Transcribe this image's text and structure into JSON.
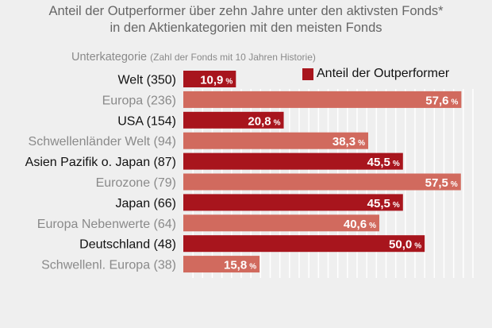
{
  "chart_data": {
    "type": "bar",
    "orientation": "horizontal",
    "title": "Anteil der Outperformer über zehn Jahre unter den aktivsten Fonds*",
    "subtitle": "in den Aktienkategorien mit den meisten Fonds",
    "category_header": "Unterkategorie",
    "category_header_note": "(Zahl der Fonds mit 10 Jahren Historie)",
    "legend": "Anteil der Outperformer",
    "categories": [
      "Welt (350)",
      "Europa (236)",
      "USA (154)",
      "Schwellenländer Welt (94)",
      "Asien Pazifik o. Japan (87)",
      "Eurozone (79)",
      "Japan (66)",
      "Europa Nebenwerte (64)",
      "Deutschland (48)",
      "Schwellenl. Europa (38)"
    ],
    "values": [
      10.9,
      57.6,
      20.8,
      38.3,
      45.5,
      57.5,
      45.5,
      40.6,
      50.0,
      15.8
    ],
    "value_labels": [
      "10,9",
      "57,6",
      "20,8",
      "38,3",
      "45,5",
      "57,5",
      "45,5",
      "40,6",
      "50,0",
      "15,8"
    ],
    "unit": "%",
    "xlim": [
      0,
      60
    ],
    "grid": true,
    "colors": {
      "dark_bar": "#a8151d",
      "light_bar": "#d16a5e",
      "dark_label": "#111111",
      "light_label": "#8a8a8a",
      "grid": "#ffffff",
      "background": "#efefef"
    }
  }
}
